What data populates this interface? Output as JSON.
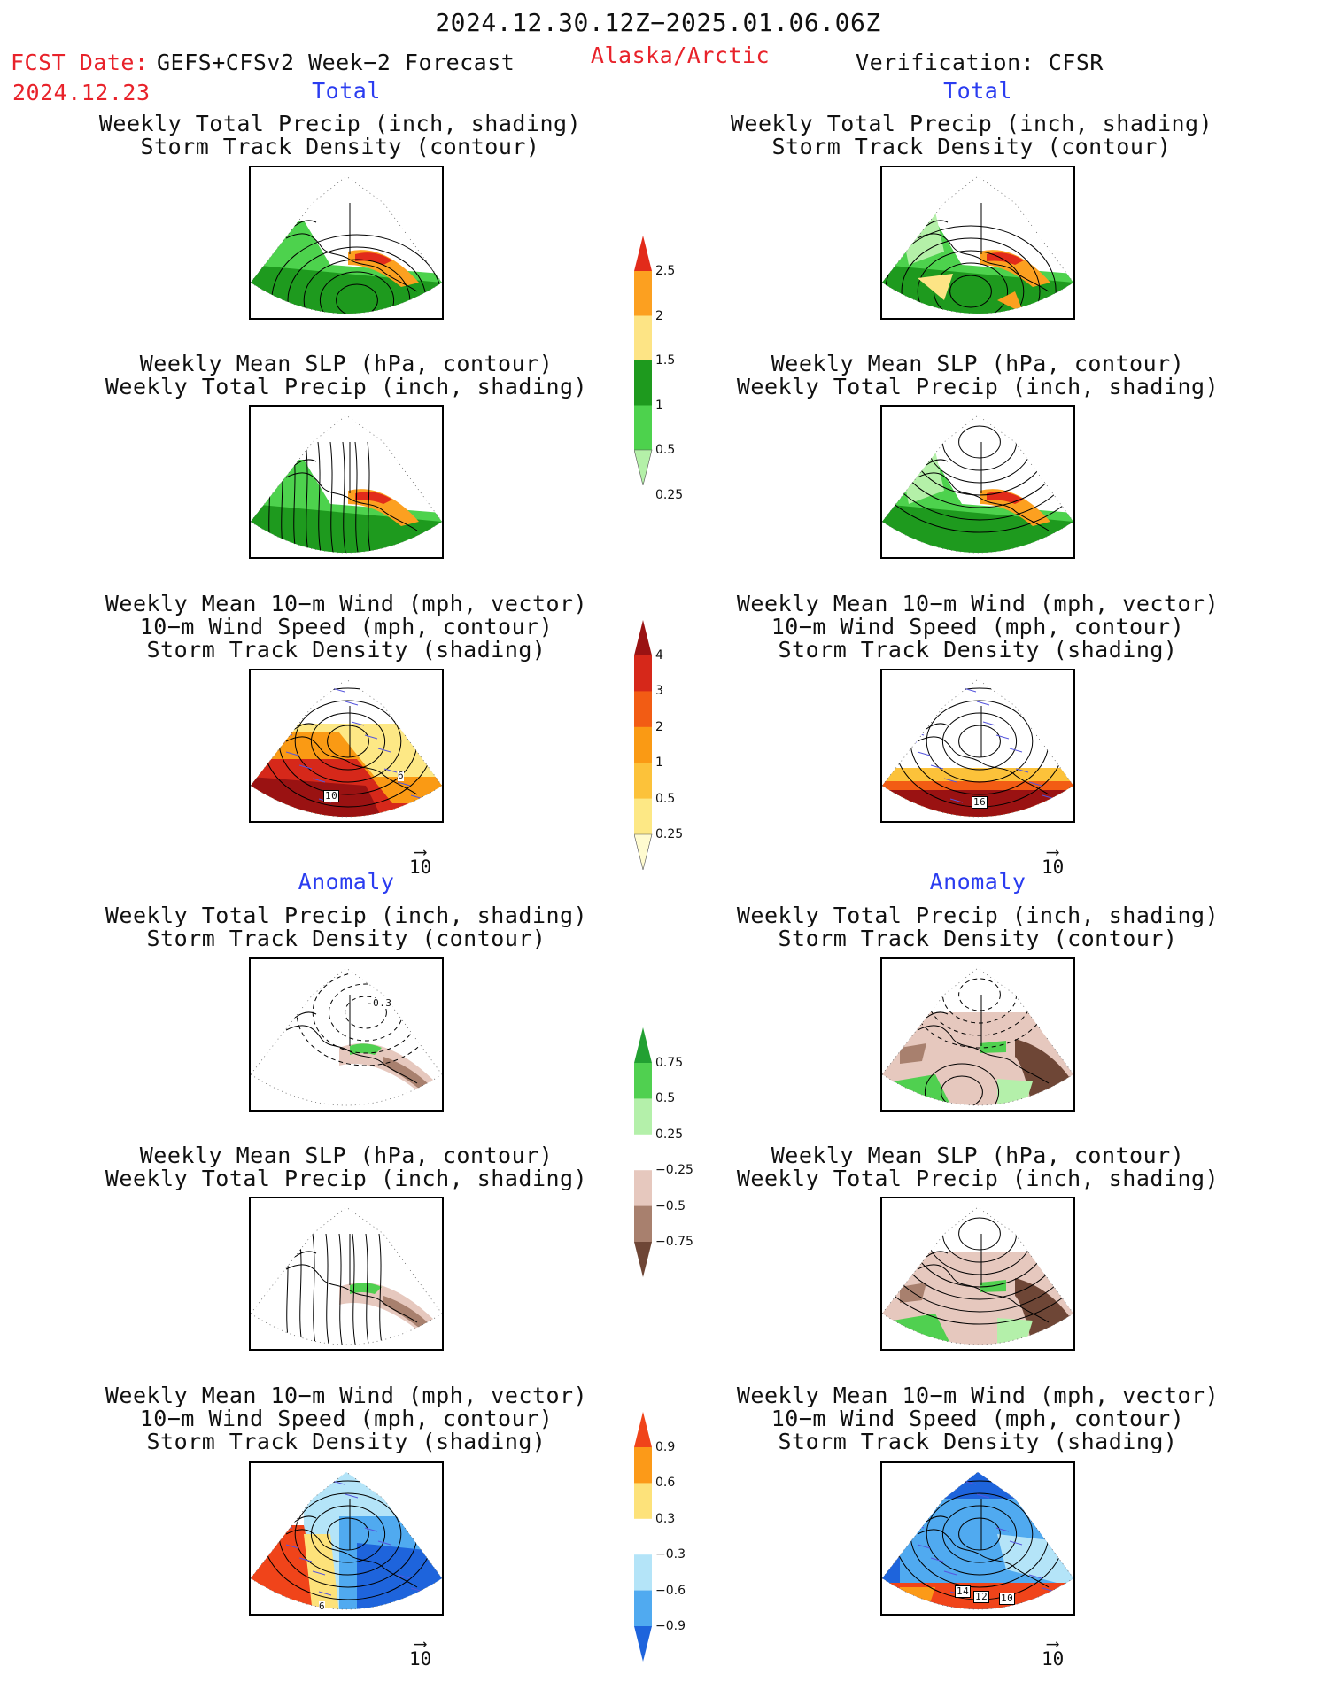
{
  "header": {
    "period": "2024.12.30.12Z−2025.01.06.06Z",
    "fcst_label": "FCST Date:",
    "model": "GEFS+CFSv2 Week−2 Forecast",
    "fcst_date": "2024.12.23",
    "region": "Alaska/Arctic",
    "verification": "Verification: CFSR"
  },
  "sections": {
    "total": "Total",
    "anomaly": "Anomaly"
  },
  "titles": {
    "precip_track": [
      "Weekly Total Precip (inch, shading)",
      "Storm Track Density (contour)"
    ],
    "slp_precip": [
      "Weekly Mean SLP (hPa, contour)",
      "Weekly Total Precip (inch, shading)"
    ],
    "wind_track": [
      "Weekly Mean 10−m Wind (mph, vector)",
      "10−m Wind Speed (mph, contour)",
      "Storm Track Density (shading)"
    ]
  },
  "reference_vector": "10",
  "contour_labels": {
    "fcst_total_wind": [
      "10",
      "6"
    ],
    "obs_total_wind": [
      "16"
    ],
    "fcst_anom_precip": [
      "-0.3"
    ],
    "fcst_anom_wind": [
      "6"
    ],
    "obs_anom_wind": [
      "14",
      "12",
      "10"
    ]
  },
  "colorbars": {
    "precip_total": {
      "labels": [
        "2.5",
        "2",
        "1.5",
        "1",
        "0.5",
        "0.25"
      ],
      "colors": [
        "#e22b1a",
        "#fca020",
        "#fde485",
        "#1e9a1e",
        "#4dd24d",
        "#b4f0a8"
      ]
    },
    "track_total": {
      "labels": [
        "4",
        "3",
        "2",
        "1",
        "0.5",
        "0.25"
      ],
      "colors": [
        "#9a1212",
        "#d6281a",
        "#f25c14",
        "#fa9a14",
        "#fcc23a",
        "#fde885",
        "#fffbd0"
      ]
    },
    "precip_anom": {
      "labels": [
        "0.75",
        "0.5",
        "0.25",
        "−0.25",
        "−0.5",
        "−0.75"
      ],
      "colors": [
        "#22a032",
        "#50d050",
        "#b4f0aa",
        "#ffffff",
        "#e6c8be",
        "#a8806e",
        "#6e4636"
      ]
    },
    "track_anom": {
      "labels": [
        "0.9",
        "0.6",
        "0.3",
        "−0.3",
        "−0.6",
        "−0.9"
      ],
      "colors": [
        "#f0441a",
        "#fc9a18",
        "#fde27a",
        "#ffffff",
        "#b4e4f8",
        "#50aaf0",
        "#1e64dc"
      ]
    }
  }
}
